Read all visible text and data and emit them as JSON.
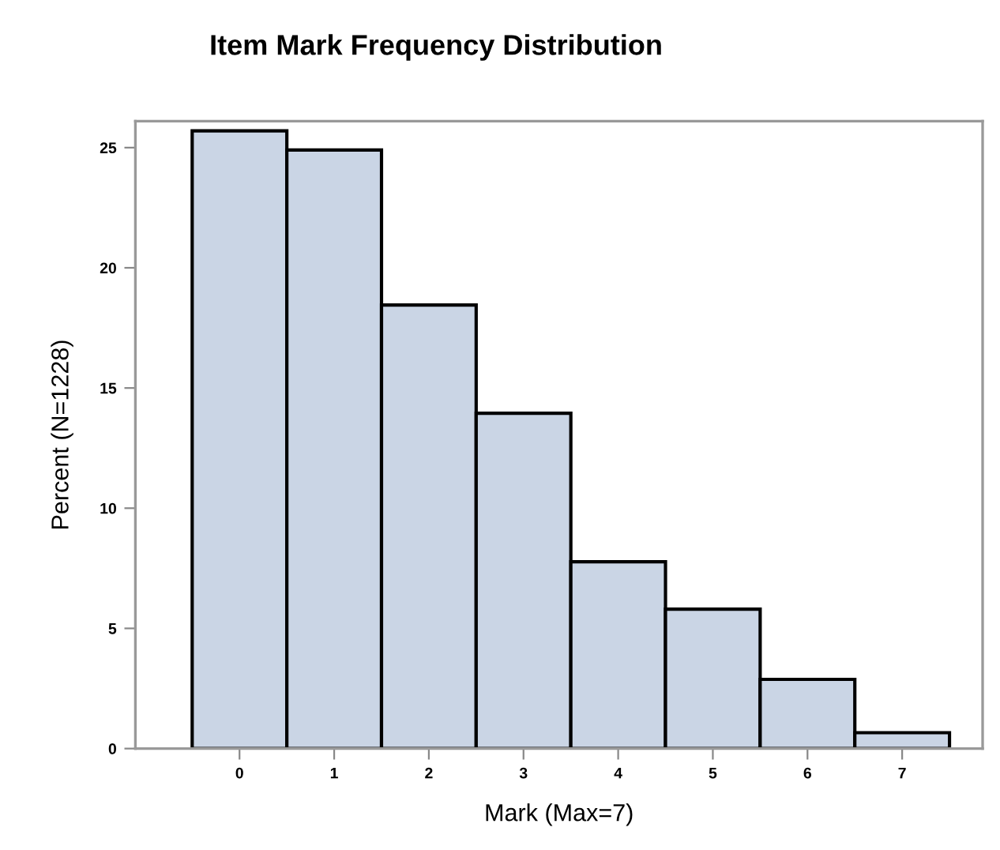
{
  "chart_data": {
    "type": "histogram",
    "title": "Item Mark Frequency Distribution",
    "xlabel": "Mark (Max=7)",
    "ylabel": "Percent (N=1228)",
    "bins": [
      -0.5,
      0.5,
      1.5,
      2.5,
      3.5,
      4.5,
      5.5,
      6.5,
      7.5
    ],
    "values": [
      25.7,
      24.9,
      18.45,
      13.95,
      7.77,
      5.8,
      2.88,
      0.66
    ],
    "color": "#cad5e5",
    "xlim": [
      -1.1,
      7.85
    ],
    "xticks": [
      0,
      1,
      2,
      3,
      4,
      5,
      6,
      7
    ],
    "ylim": [
      0,
      26.1
    ],
    "yticks": [
      0,
      5,
      10,
      15,
      20,
      25
    ],
    "grid": false,
    "legend": false
  }
}
